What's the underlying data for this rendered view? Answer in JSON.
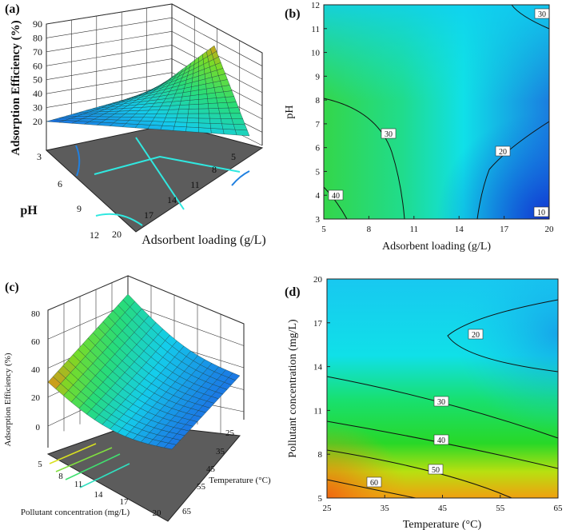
{
  "colors": {
    "surface_low": "#1e6fe0",
    "surface_mid": "#10d8e8",
    "surface_high": "#5fd636",
    "floor": "#5c5c5c",
    "contour_line": "#111111",
    "floor_contour": "#30e8e0"
  },
  "chart_data": [
    {
      "panel": "(a)",
      "type": "surface3d",
      "zlabel": "Adsorption Efficiency (%)",
      "ylabel": "pH",
      "xlabel": "Adsorbent loading (g/L)",
      "zticks": [
        "90",
        "80",
        "70",
        "60",
        "50",
        "40",
        "30",
        "20"
      ],
      "yticks": [
        "3",
        "6",
        "9",
        "12"
      ],
      "xticks": [
        "20",
        "17",
        "14",
        "11",
        "8",
        "5"
      ],
      "corners": {
        "loading5_pH3": 30,
        "loading20_pH3": 15,
        "loading5_pH12": 70,
        "loading20_pH12": 20
      }
    },
    {
      "panel": "(b)",
      "type": "contour",
      "xlabel": "Adsorbent loading (g/L)",
      "ylabel": "pH",
      "xlim": [
        5,
        20
      ],
      "ylim": [
        3,
        12
      ],
      "xticks": [
        "5",
        "8",
        "11",
        "14",
        "17",
        "20"
      ],
      "yticks": [
        "3",
        "4",
        "5",
        "6",
        "7",
        "8",
        "9",
        "10",
        "11",
        "12"
      ],
      "contour_labels": [
        "30",
        "30",
        "40",
        "20",
        "10"
      ]
    },
    {
      "panel": "(c)",
      "type": "surface3d",
      "zlabel": "Adsorption Efficiency (%)",
      "xlabel": "Pollutant concentration (mg/L)",
      "ylabel": "Temperature (°C)",
      "zticks": [
        "80",
        "60",
        "40",
        "20",
        "0"
      ],
      "xticks": [
        "5",
        "8",
        "11",
        "14",
        "17",
        "20"
      ],
      "yticks": [
        "25",
        "35",
        "45",
        "55",
        "65"
      ],
      "corners": {
        "conc5_temp25": 70,
        "conc20_temp25": 30,
        "conc5_temp65": 45,
        "conc20_temp65": 15
      }
    },
    {
      "panel": "(d)",
      "type": "contour",
      "xlabel": "Temperature (°C)",
      "ylabel": "Pollutant concentration (mg/L)",
      "xlim": [
        25,
        65
      ],
      "ylim": [
        5,
        20
      ],
      "xticks": [
        "25",
        "35",
        "45",
        "55",
        "65"
      ],
      "yticks": [
        "5",
        "8",
        "11",
        "14",
        "17",
        "20"
      ],
      "contour_labels": [
        "20",
        "30",
        "40",
        "50",
        "60"
      ]
    }
  ]
}
